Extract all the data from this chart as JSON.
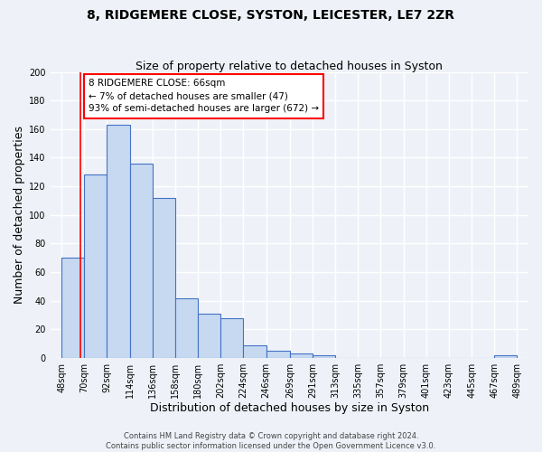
{
  "title": "8, RIDGEMERE CLOSE, SYSTON, LEICESTER, LE7 2ZR",
  "subtitle": "Size of property relative to detached houses in Syston",
  "xlabel": "Distribution of detached houses by size in Syston",
  "ylabel": "Number of detached properties",
  "bar_left_edges": [
    48,
    70,
    92,
    114,
    136,
    158,
    180,
    202,
    224,
    246,
    269,
    291,
    313,
    335,
    357,
    379,
    401,
    423,
    445,
    467
  ],
  "bar_widths": [
    22,
    22,
    22,
    22,
    22,
    22,
    22,
    22,
    22,
    23,
    22,
    22,
    22,
    22,
    22,
    22,
    22,
    22,
    22,
    22
  ],
  "bar_heights": [
    70,
    128,
    163,
    136,
    112,
    42,
    31,
    28,
    9,
    5,
    3,
    2,
    0,
    0,
    0,
    0,
    0,
    0,
    0,
    2
  ],
  "bar_color": "#c6d9f1",
  "bar_edge_color": "#4472c4",
  "x_tick_labels": [
    "48sqm",
    "70sqm",
    "92sqm",
    "114sqm",
    "136sqm",
    "158sqm",
    "180sqm",
    "202sqm",
    "224sqm",
    "246sqm",
    "269sqm",
    "291sqm",
    "313sqm",
    "335sqm",
    "357sqm",
    "379sqm",
    "401sqm",
    "423sqm",
    "445sqm",
    "467sqm",
    "489sqm"
  ],
  "x_tick_positions": [
    48,
    70,
    92,
    114,
    136,
    158,
    180,
    202,
    224,
    246,
    269,
    291,
    313,
    335,
    357,
    379,
    401,
    423,
    445,
    467,
    489
  ],
  "ylim": [
    0,
    200
  ],
  "yticks": [
    0,
    20,
    40,
    60,
    80,
    100,
    120,
    140,
    160,
    180,
    200
  ],
  "red_line_x": 66,
  "annotation_title": "8 RIDGEMERE CLOSE: 66sqm",
  "annotation_line1": "← 7% of detached houses are smaller (47)",
  "annotation_line2": "93% of semi-detached houses are larger (672) →",
  "footer_line1": "Contains HM Land Registry data © Crown copyright and database right 2024.",
  "footer_line2": "Contains public sector information licensed under the Open Government Licence v3.0.",
  "background_color": "#eef2f8",
  "plot_background_color": "#eef2f8",
  "grid_color": "#ffffff",
  "title_fontsize": 10,
  "subtitle_fontsize": 9,
  "axis_label_fontsize": 9,
  "tick_fontsize": 7,
  "footer_fontsize": 6,
  "xlim_left": 37,
  "xlim_right": 500
}
